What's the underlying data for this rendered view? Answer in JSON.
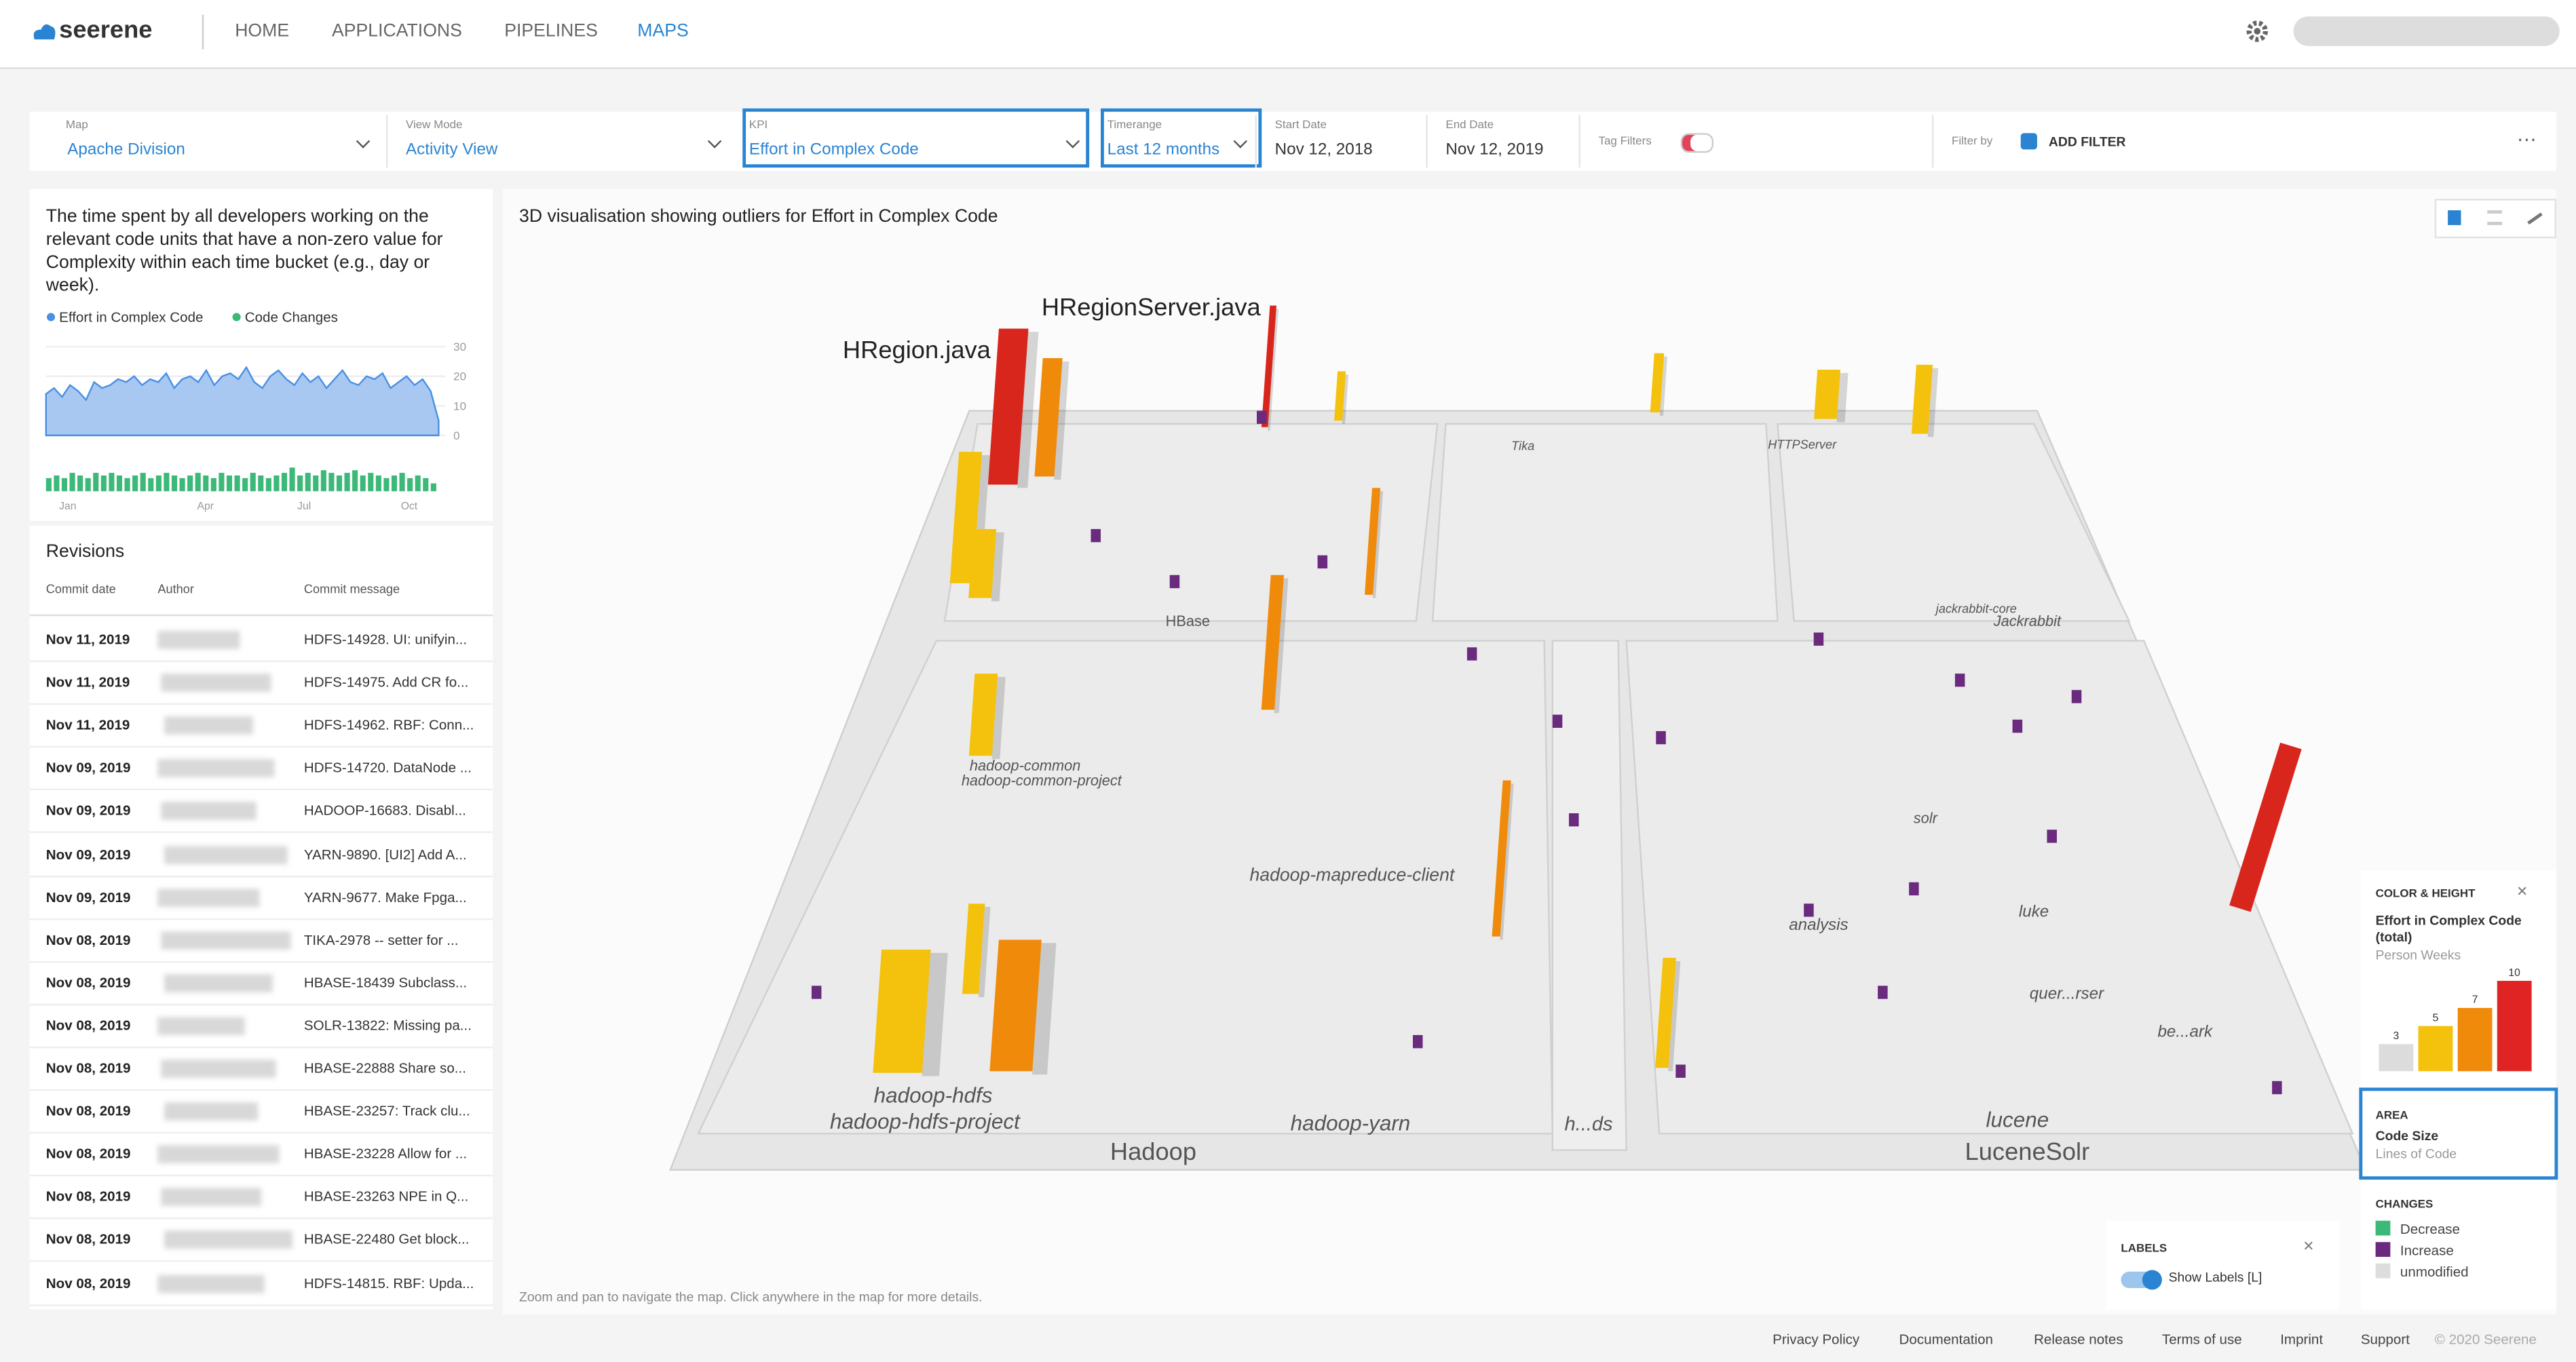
{
  "nav": {
    "brand": "seerene",
    "items": [
      "HOME",
      "APPLICATIONS",
      "PIPELINES",
      "MAPS"
    ],
    "active": 3
  },
  "filters": [
    {
      "label": "Map",
      "value": "Apache Division"
    },
    {
      "label": "View Mode",
      "value": "Activity View"
    },
    {
      "label": "KPI",
      "value": "Effort in Complex Code"
    },
    {
      "label": "Timerange",
      "value": "Last 12 months"
    },
    {
      "label": "Start Date",
      "value": "Nov 12, 2018"
    },
    {
      "label": "End Date",
      "value": "Nov 12, 2019"
    },
    {
      "label": "Tag Filters"
    },
    {
      "label": "Filter by",
      "value": "ADD FILTER"
    }
  ],
  "description": "The time spent by all developers working on the relevant code units that have a non-zero value for Complexity within each time bucket (e.g., day or week).",
  "mini_chart": {
    "type": "area",
    "ylim": [
      0,
      30
    ],
    "yticks": [
      0,
      10,
      20,
      30
    ],
    "x_labels": [
      "Jan",
      "Apr",
      "Jul",
      "Oct"
    ],
    "series": [
      {
        "name": "Effort in Complex Code",
        "color": "#4a90e2",
        "values": [
          14,
          16,
          13,
          17,
          15,
          12,
          18,
          16,
          17,
          19,
          18,
          20,
          17,
          19,
          18,
          21,
          16,
          19,
          20,
          18,
          22,
          17,
          20,
          21,
          19,
          23,
          18,
          16,
          20,
          22,
          19,
          17,
          21,
          18,
          20,
          16,
          19,
          22,
          18,
          17,
          20,
          19,
          21,
          16,
          18,
          20,
          17,
          19,
          15,
          5
        ]
      },
      {
        "name": "Code Changes",
        "color": "#3cb878",
        "type": "bar",
        "ylim": [
          0,
          10
        ],
        "values": [
          5,
          6,
          5,
          7,
          6,
          5,
          7,
          6,
          7,
          6,
          5,
          6,
          7,
          5,
          6,
          7,
          6,
          5,
          6,
          7,
          6,
          5,
          7,
          6,
          6,
          5,
          7,
          6,
          5,
          6,
          7,
          9,
          6,
          7,
          6,
          8,
          7,
          6,
          7,
          8,
          6,
          7,
          6,
          5,
          6,
          7,
          5,
          6,
          5,
          3
        ]
      }
    ]
  },
  "revisions": {
    "title": "Revisions",
    "columns": [
      "Commit date",
      "Author",
      "Commit message"
    ],
    "rows": [
      [
        "Nov 11, 2019",
        "HDFS-14928. UI: unifyin..."
      ],
      [
        "Nov 11, 2019",
        "HDFS-14975. Add CR fo..."
      ],
      [
        "Nov 11, 2019",
        "HDFS-14962. RBF: Conn..."
      ],
      [
        "Nov 09, 2019",
        "HDFS-14720. DataNode ..."
      ],
      [
        "Nov 09, 2019",
        "HADOOP-16683. Disabl..."
      ],
      [
        "Nov 09, 2019",
        "YARN-9890. [UI2] Add A..."
      ],
      [
        "Nov 09, 2019",
        "YARN-9677. Make Fpga..."
      ],
      [
        "Nov 08, 2019",
        "TIKA-2978 -- setter for ..."
      ],
      [
        "Nov 08, 2019",
        "HBASE-18439 Subclass..."
      ],
      [
        "Nov 08, 2019",
        "SOLR-13822: Missing pa..."
      ],
      [
        "Nov 08, 2019",
        "HBASE-22888 Share so..."
      ],
      [
        "Nov 08, 2019",
        "HBASE-23257: Track clu..."
      ],
      [
        "Nov 08, 2019",
        "HBASE-23228 Allow for ..."
      ],
      [
        "Nov 08, 2019",
        "HBASE-23263 NPE in Q..."
      ],
      [
        "Nov 08, 2019",
        "HBASE-22480 Get block..."
      ],
      [
        "Nov 08, 2019",
        "HDFS-14815. RBF: Upda..."
      ]
    ]
  },
  "map": {
    "title": "3D visualisation showing outliers for Effort in Complex Code",
    "hint": "Zoom and pan to navigate the map. Click anywhere in the map for more details.",
    "labels": [
      "HRegionServer.java",
      "HRegion.java",
      "HBase",
      "hadoop-common",
      "hadoop-common-project",
      "hadoop-mapreduce-client",
      "hadoop-hdfs",
      "hadoop-hdfs-project",
      "Hadoop",
      "hadoop-yarn",
      "h...ds",
      "solr",
      "analysis",
      "luke",
      "quer...rser",
      "be...ark",
      "lucene",
      "LuceneSolr",
      "Jackrabbit",
      "jackrabbit-core",
      "Tika",
      "HTTPServer"
    ]
  },
  "legend_panel": {
    "color_height": {
      "heading": "COLOR & HEIGHT",
      "name": "Effort in Complex Code (total)",
      "unit": "Person Weeks",
      "values": [
        3,
        5,
        7,
        10
      ],
      "colors": [
        "#dcdcdc",
        "#f4c20d",
        "#f08a0b",
        "#e02424"
      ],
      "ylim": [
        0,
        10
      ]
    },
    "area": {
      "heading": "AREA",
      "name": "Code Size",
      "unit": "Lines of Code"
    },
    "changes": {
      "heading": "CHANGES",
      "items": [
        {
          "name": "Decrease",
          "color": "#3cb878"
        },
        {
          "name": "Increase",
          "color": "#6a2a7e"
        },
        {
          "name": "unmodified",
          "color": "#dddddd"
        }
      ]
    }
  },
  "labels_panel": {
    "heading": "LABELS",
    "toggle": "Show Labels [L]",
    "on": true
  },
  "footer": {
    "links": [
      "Privacy Policy",
      "Documentation",
      "Release notes",
      "Terms of use",
      "Imprint",
      "Support"
    ],
    "copyright": "© 2020 Seerene"
  }
}
